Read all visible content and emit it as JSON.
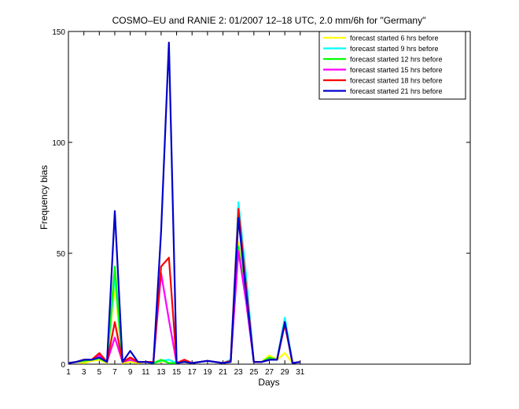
{
  "chart_data": {
    "type": "line",
    "title": "COSMO–EU and RANIE 2: 01/2007 12–18 UTC, 2.0 mm/6h for \"Germany\"",
    "xlabel": "Days",
    "ylabel": "Frequency bias",
    "xlim": [
      1,
      53
    ],
    "ylim": [
      0,
      150
    ],
    "x_ticks": [
      1,
      3,
      5,
      7,
      9,
      11,
      13,
      15,
      17,
      19,
      21,
      23,
      25,
      27,
      29,
      31
    ],
    "y_ticks": [
      0,
      50,
      100,
      150
    ],
    "legend_position": "top-right",
    "grid": false,
    "x": [
      1,
      2,
      3,
      4,
      5,
      6,
      7,
      8,
      9,
      10,
      11,
      12,
      13,
      14,
      15,
      16,
      17,
      18,
      19,
      20,
      21,
      22,
      23,
      24,
      25,
      26,
      27,
      28,
      29,
      30,
      31
    ],
    "series": [
      {
        "name": "forecast started 6 hrs before",
        "color": "#ffff00",
        "values": [
          0.5,
          1,
          0.5,
          1.5,
          2,
          0.5,
          35,
          0.5,
          1,
          0.5,
          1,
          0.5,
          1,
          2,
          0.5,
          1,
          0.5,
          1,
          1.5,
          1,
          0.5,
          1,
          55,
          30,
          1,
          1,
          4,
          2,
          5,
          0.5,
          1
        ]
      },
      {
        "name": "forecast started 9 hrs before",
        "color": "#00ffff",
        "values": [
          0.5,
          1,
          1.5,
          2,
          3,
          1,
          40,
          1,
          2,
          1,
          1,
          0.5,
          1.5,
          2,
          0.5,
          1.5,
          0.5,
          1,
          1.5,
          1,
          0.5,
          2,
          73,
          40,
          1,
          1,
          2,
          2,
          21,
          0.5,
          1
        ]
      },
      {
        "name": "forecast started 12 hrs before",
        "color": "#00ff00",
        "values": [
          0.5,
          1,
          1.5,
          2,
          2.5,
          1,
          44,
          1,
          2,
          1,
          1,
          0.5,
          2,
          0.5,
          0.5,
          1,
          0.5,
          1,
          1.5,
          1,
          0.5,
          1.5,
          53,
          30,
          1,
          1,
          3,
          2,
          19,
          0.5,
          1
        ]
      },
      {
        "name": "forecast started 15 hrs before",
        "color": "#ff00ff",
        "values": [
          0.5,
          1,
          2,
          2,
          4,
          1,
          12,
          1,
          2,
          1,
          1,
          1,
          41,
          20,
          0.5,
          2,
          0.5,
          1,
          1.5,
          1,
          0.5,
          1.5,
          51,
          28,
          1,
          1,
          2,
          2,
          18,
          0.5,
          1
        ]
      },
      {
        "name": "forecast started 18 hrs before",
        "color": "#ff0000",
        "values": [
          0.5,
          1,
          2,
          2,
          5,
          1,
          19,
          1,
          3,
          1,
          1,
          1,
          44,
          48,
          0.5,
          2,
          0.5,
          1,
          1.5,
          1,
          0.5,
          1.5,
          70,
          35,
          1,
          1,
          2,
          2,
          18,
          0.5,
          1
        ]
      },
      {
        "name": "forecast started 21 hrs before",
        "color": "#0000cc",
        "values": [
          0.5,
          1,
          2,
          2,
          3,
          1,
          69,
          1,
          6,
          1,
          1,
          0.5,
          60,
          145,
          0.5,
          1,
          0.5,
          1,
          1.5,
          1,
          0.5,
          1,
          66,
          32,
          1,
          1,
          2,
          2,
          19,
          0.5,
          1
        ]
      }
    ]
  }
}
